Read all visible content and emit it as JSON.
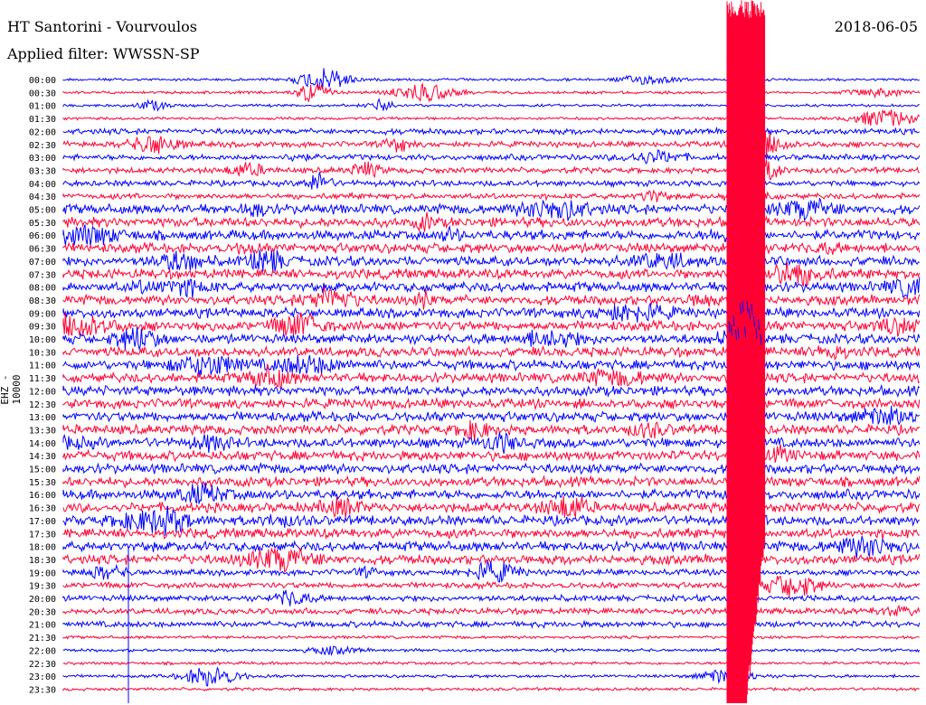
{
  "header": {
    "station_title": "HT Santorini - Vourvoulos",
    "filter_label": "Applied filter: WWSSN-SP",
    "date": "2018-06-05"
  },
  "chart_data": {
    "type": "helicorder",
    "ylabel": "EHZ - 10000",
    "rows": [
      "00:00",
      "00:30",
      "01:00",
      "01:30",
      "02:00",
      "02:30",
      "03:00",
      "03:30",
      "04:00",
      "04:30",
      "05:00",
      "05:30",
      "06:00",
      "06:30",
      "07:00",
      "07:30",
      "08:00",
      "08:30",
      "09:00",
      "09:30",
      "10:00",
      "10:30",
      "11:00",
      "11:30",
      "12:00",
      "12:30",
      "13:00",
      "13:30",
      "14:00",
      "14:30",
      "15:00",
      "15:30",
      "16:00",
      "16:30",
      "17:00",
      "17:30",
      "18:00",
      "18:30",
      "19:00",
      "19:30",
      "20:00",
      "20:30",
      "21:00",
      "21:30",
      "22:00",
      "22:30",
      "23:00",
      "23:30"
    ],
    "row_duration_minutes": 30,
    "colors": {
      "even_rows": "#0000ff",
      "odd_rows": "#ff0033",
      "label_text": "#000000"
    },
    "grid": false
  }
}
